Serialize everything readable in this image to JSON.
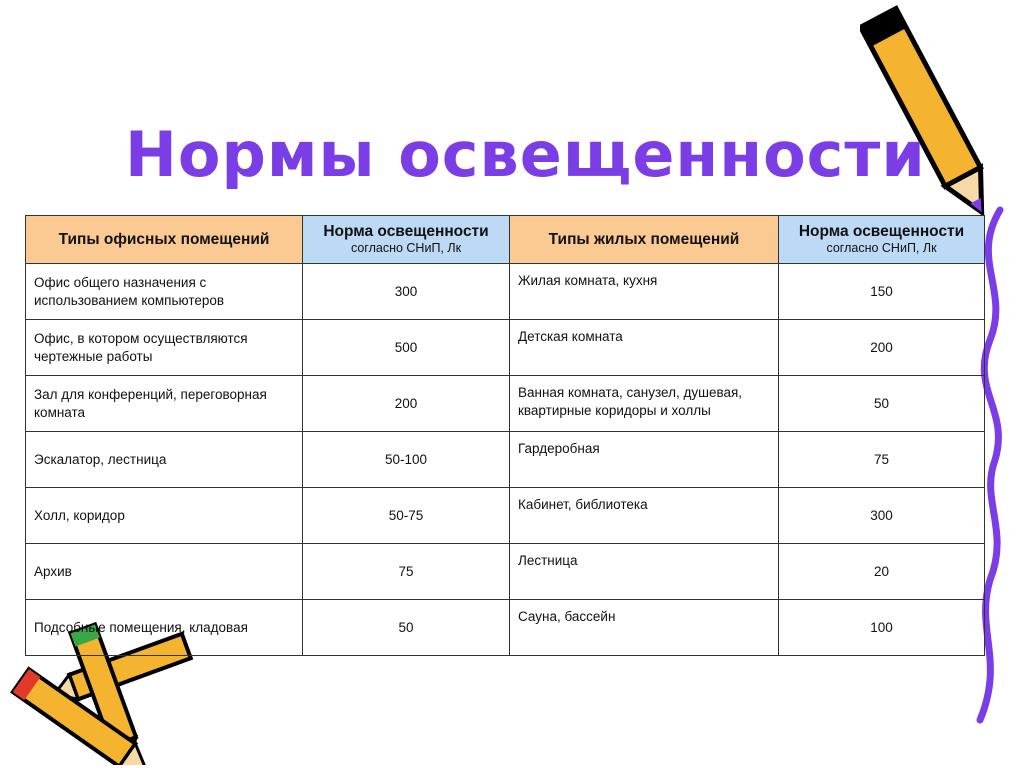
{
  "title": "Нормы освещенности",
  "colors": {
    "title": "#7a3de6",
    "header_type": "#fbca92",
    "header_norm": "#bcd9f6",
    "pencil": "#f5b430",
    "squiggle": "#7a3de6"
  },
  "table": {
    "headers": [
      {
        "label": "Типы офисных помещений"
      },
      {
        "label": "Норма освещенности",
        "sub": "согласно СНиП, Лк"
      },
      {
        "label": "Типы жилых помещений"
      },
      {
        "label": "Норма освещенности",
        "sub": "согласно СНиП, Лк"
      }
    ],
    "rows": [
      [
        "Офис общего назначения с использованием компьютеров",
        "300",
        "Жилая комната, кухня",
        "150"
      ],
      [
        "Офис, в котором осуществляются чертежные работы",
        "500",
        "Детская комната",
        "200"
      ],
      [
        "Зал для конференций, переговорная комната",
        "200",
        "Ванная комната, санузел, душевая, квартирные коридоры и холлы",
        "50"
      ],
      [
        "Эскалатор, лестница",
        "50-100",
        "Гардеробная",
        "75"
      ],
      [
        "Холл, коридор",
        "50-75",
        "Кабинет, библиотека",
        "300"
      ],
      [
        "Архив",
        "75",
        "Лестница",
        "20"
      ],
      [
        "Подсобные помещения, кладовая",
        "50",
        "Сауна, бассейн",
        "100"
      ]
    ]
  },
  "decorations": [
    "pencil-icon",
    "squiggle-line"
  ]
}
